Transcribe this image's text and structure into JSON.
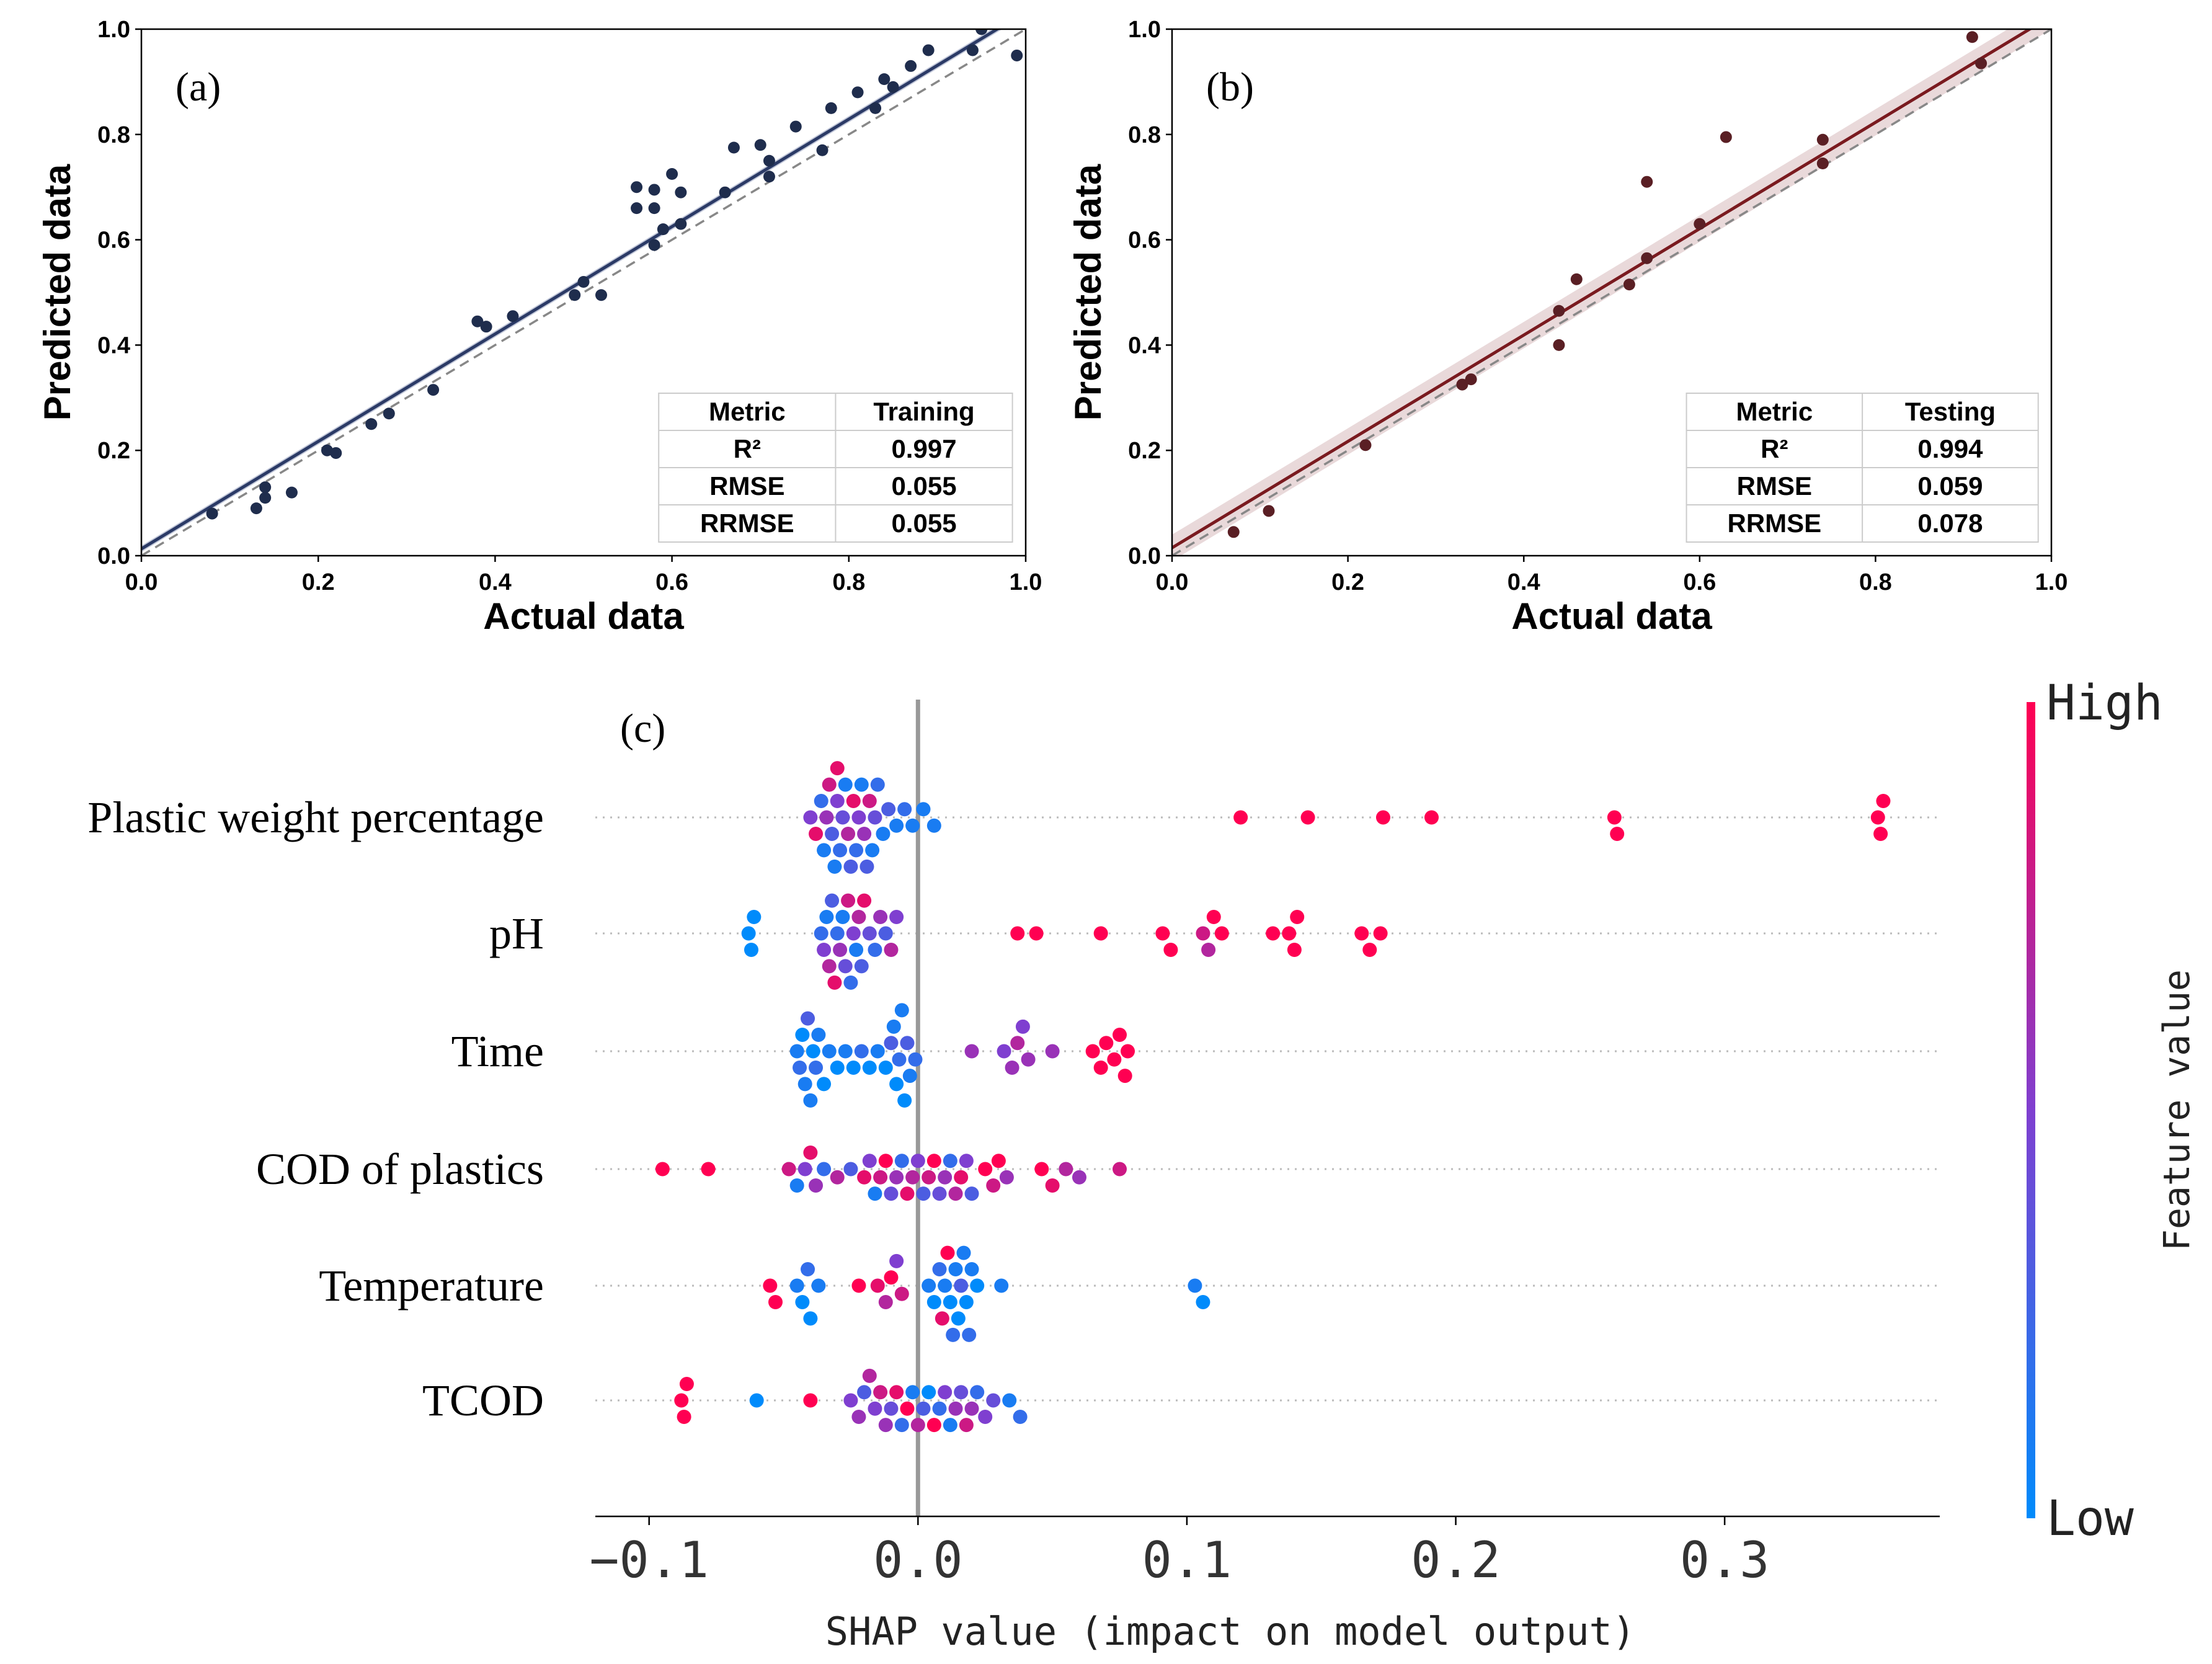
{
  "chart_data": [
    {
      "type": "scatter",
      "panel_label": "(a)",
      "xlabel": "Actual data",
      "ylabel": "Predicted data",
      "xlim": [
        0,
        1
      ],
      "ylim": [
        0,
        1
      ],
      "xticks": [
        "0.0",
        "0.2",
        "0.4",
        "0.6",
        "0.8",
        "1.0"
      ],
      "yticks": [
        "0.0",
        "0.2",
        "0.4",
        "0.6",
        "0.8",
        "1.0"
      ],
      "point_color": "#1f2d4d",
      "line_color": "#2b3a66",
      "band_color": "#8d97b8",
      "fit": {
        "intercept": 0.013,
        "slope": 1.02,
        "band": 0.006
      },
      "reference_line": {
        "style": "dashed",
        "color": "#888888"
      },
      "points": [
        [
          0.08,
          0.08
        ],
        [
          0.13,
          0.09
        ],
        [
          0.14,
          0.11
        ],
        [
          0.14,
          0.13
        ],
        [
          0.17,
          0.12
        ],
        [
          0.21,
          0.2
        ],
        [
          0.22,
          0.195
        ],
        [
          0.26,
          0.25
        ],
        [
          0.28,
          0.27
        ],
        [
          0.33,
          0.315
        ],
        [
          0.38,
          0.445
        ],
        [
          0.39,
          0.435
        ],
        [
          0.42,
          0.455
        ],
        [
          0.49,
          0.495
        ],
        [
          0.5,
          0.52
        ],
        [
          0.52,
          0.495
        ],
        [
          0.56,
          0.7
        ],
        [
          0.56,
          0.66
        ],
        [
          0.58,
          0.695
        ],
        [
          0.58,
          0.66
        ],
        [
          0.58,
          0.59
        ],
        [
          0.59,
          0.62
        ],
        [
          0.6,
          0.725
        ],
        [
          0.61,
          0.69
        ],
        [
          0.61,
          0.63
        ],
        [
          0.66,
          0.69
        ],
        [
          0.67,
          0.775
        ],
        [
          0.7,
          0.78
        ],
        [
          0.71,
          0.75
        ],
        [
          0.71,
          0.72
        ],
        [
          0.74,
          0.815
        ],
        [
          0.77,
          0.77
        ],
        [
          0.78,
          0.85
        ],
        [
          0.81,
          0.88
        ],
        [
          0.83,
          0.85
        ],
        [
          0.84,
          0.905
        ],
        [
          0.85,
          0.89
        ],
        [
          0.87,
          0.93
        ],
        [
          0.89,
          0.96
        ],
        [
          0.94,
          0.96
        ],
        [
          0.95,
          1.0
        ],
        [
          0.99,
          0.95
        ]
      ],
      "table": {
        "headers": [
          "Metric",
          "Training"
        ],
        "rows": [
          [
            "R²",
            "0.997"
          ],
          [
            "RMSE",
            "0.055"
          ],
          [
            "RRMSE",
            "0.055"
          ]
        ]
      }
    },
    {
      "type": "scatter",
      "panel_label": "(b)",
      "xlabel": "Actual data",
      "ylabel": "Predicted data",
      "xlim": [
        0,
        1
      ],
      "ylim": [
        0,
        1
      ],
      "xticks": [
        "0.0",
        "0.2",
        "0.4",
        "0.6",
        "0.8",
        "1.0"
      ],
      "yticks": [
        "0.0",
        "0.2",
        "0.4",
        "0.6",
        "0.8",
        "1.0"
      ],
      "point_color": "#5a1f24",
      "line_color": "#7a1a1f",
      "band_color": "#d7b9bb",
      "fit": {
        "intercept": 0.015,
        "slope": 1.01,
        "band": 0.025
      },
      "reference_line": {
        "style": "dashed",
        "color": "#888888"
      },
      "points": [
        [
          0.07,
          0.045
        ],
        [
          0.11,
          0.085
        ],
        [
          0.22,
          0.21
        ],
        [
          0.33,
          0.325
        ],
        [
          0.34,
          0.335
        ],
        [
          0.44,
          0.4
        ],
        [
          0.44,
          0.465
        ],
        [
          0.46,
          0.525
        ],
        [
          0.52,
          0.515
        ],
        [
          0.54,
          0.565
        ],
        [
          0.54,
          0.71
        ],
        [
          0.6,
          0.63
        ],
        [
          0.63,
          0.795
        ],
        [
          0.74,
          0.745
        ],
        [
          0.74,
          0.79
        ],
        [
          0.91,
          0.985
        ],
        [
          0.92,
          0.935
        ]
      ],
      "table": {
        "headers": [
          "Metric",
          "Testing"
        ],
        "rows": [
          [
            "R²",
            "0.994"
          ],
          [
            "RMSE",
            "0.059"
          ],
          [
            "RRMSE",
            "0.078"
          ]
        ]
      }
    },
    {
      "type": "beeswarm",
      "panel_label": "(c)",
      "xlabel": "SHAP value (impact on model output)",
      "xlim": [
        -0.12,
        0.38
      ],
      "xticks": [
        -0.1,
        0.0,
        0.1,
        0.2,
        0.3
      ],
      "xtick_labels": [
        "−0.1",
        "0.0",
        "0.1",
        "0.2",
        "0.3"
      ],
      "colorbar": {
        "title": "Feature value",
        "high_label": "High",
        "low_label": "Low",
        "low_color": "#008bfb",
        "mid_color": "#7f3fd0",
        "high_color": "#ff0052"
      },
      "features": [
        {
          "name": "Plastic weight percentage",
          "values": [
            -0.04,
            -0.038,
            -0.036,
            -0.035,
            -0.034,
            -0.033,
            -0.032,
            -0.031,
            -0.03,
            -0.03,
            -0.029,
            -0.028,
            -0.027,
            -0.026,
            -0.025,
            -0.024,
            -0.023,
            -0.022,
            -0.021,
            -0.02,
            -0.019,
            -0.018,
            -0.017,
            -0.016,
            -0.015,
            -0.013,
            -0.011,
            -0.008,
            -0.005,
            -0.002,
            0.002,
            0.006,
            0.12,
            0.145,
            0.173,
            0.191,
            0.259,
            0.26,
            0.357,
            0.358,
            0.359
          ],
          "colors": [
            0.5,
            0.9,
            0.2,
            0.1,
            0.6,
            0.8,
            0.3,
            0.1,
            0.5,
            0.9,
            0.2,
            0.4,
            0.1,
            0.7,
            0.3,
            0.9,
            0.2,
            0.5,
            0.1,
            0.6,
            0.3,
            0.8,
            0.1,
            0.4,
            0.2,
            0.1,
            0.3,
            0.1,
            0.2,
            0.1,
            0.1,
            0.1,
            1,
            1,
            1,
            1,
            1,
            1,
            1,
            1,
            1
          ]
        },
        {
          "name": "pH",
          "values": [
            -0.063,
            -0.062,
            -0.061,
            -0.036,
            -0.035,
            -0.034,
            -0.033,
            -0.032,
            -0.031,
            -0.03,
            -0.029,
            -0.028,
            -0.027,
            -0.026,
            -0.025,
            -0.024,
            -0.023,
            -0.022,
            -0.021,
            -0.02,
            -0.018,
            -0.016,
            -0.014,
            -0.012,
            -0.01,
            -0.008,
            0.037,
            0.044,
            0.068,
            0.091,
            0.094,
            0.106,
            0.108,
            0.11,
            0.113,
            0.132,
            0.138,
            0.14,
            0.141,
            0.165,
            0.168,
            0.172
          ],
          "colors": [
            0.0,
            0.0,
            0.0,
            0.2,
            0.5,
            0.1,
            0.7,
            0.3,
            0.9,
            0.2,
            0.6,
            0.1,
            0.4,
            0.8,
            0.2,
            0.5,
            0.1,
            0.7,
            0.3,
            0.9,
            0.4,
            0.2,
            0.6,
            0.3,
            0.7,
            0.5,
            1,
            1,
            1,
            1,
            1,
            0.8,
            0.7,
            1,
            1,
            1,
            1,
            1,
            1,
            1,
            1,
            1
          ]
        },
        {
          "name": "Time",
          "values": [
            -0.045,
            -0.044,
            -0.043,
            -0.042,
            -0.041,
            -0.04,
            -0.039,
            -0.038,
            -0.037,
            -0.035,
            -0.033,
            -0.03,
            -0.027,
            -0.024,
            -0.021,
            -0.018,
            -0.015,
            -0.012,
            -0.01,
            -0.009,
            -0.008,
            -0.007,
            -0.006,
            -0.005,
            -0.004,
            -0.003,
            -0.001,
            0.02,
            0.032,
            0.035,
            0.037,
            0.039,
            0.041,
            0.05,
            0.065,
            0.068,
            0.07,
            0.073,
            0.075,
            0.077,
            0.078
          ],
          "colors": [
            0.1,
            0.2,
            0.0,
            0.1,
            0.3,
            0.1,
            0.0,
            0.2,
            0.1,
            0.0,
            0.1,
            0.0,
            0.1,
            0.0,
            0.2,
            0.0,
            0.1,
            0.0,
            0.3,
            0.1,
            0.0,
            0.2,
            0.1,
            0.0,
            0.3,
            0.1,
            0.2,
            0.6,
            0.5,
            0.6,
            0.7,
            0.5,
            0.6,
            0.6,
            1,
            1,
            1,
            1,
            1,
            1,
            1
          ]
        },
        {
          "name": "COD of plastics",
          "values": [
            -0.095,
            -0.078,
            -0.048,
            -0.045,
            -0.042,
            -0.04,
            -0.038,
            -0.035,
            -0.03,
            -0.025,
            -0.02,
            -0.018,
            -0.016,
            -0.014,
            -0.012,
            -0.01,
            -0.008,
            -0.006,
            -0.004,
            -0.002,
            0,
            0.002,
            0.004,
            0.006,
            0.008,
            0.01,
            0.012,
            0.014,
            0.016,
            0.018,
            0.02,
            0.025,
            0.028,
            0.03,
            0.033,
            0.046,
            0.05,
            0.055,
            0.06,
            0.075
          ],
          "colors": [
            1,
            1,
            0.8,
            0.1,
            0.5,
            0.9,
            0.6,
            0.2,
            0.7,
            0.3,
            0.9,
            0.5,
            0.1,
            0.8,
            1,
            0.4,
            0.6,
            0.2,
            0.9,
            0.7,
            0.5,
            0.3,
            0.8,
            1,
            0.4,
            0.6,
            0.2,
            0.7,
            0.9,
            0.5,
            0.3,
            1,
            0.8,
            1,
            0.6,
            1,
            0.9,
            0.7,
            0.6,
            0.8
          ]
        },
        {
          "name": "Temperature",
          "values": [
            -0.055,
            -0.053,
            -0.045,
            -0.043,
            -0.041,
            -0.04,
            -0.037,
            -0.022,
            -0.015,
            -0.012,
            -0.01,
            -0.008,
            -0.006,
            0.004,
            0.006,
            0.008,
            0.009,
            0.01,
            0.011,
            0.012,
            0.013,
            0.014,
            0.015,
            0.016,
            0.017,
            0.018,
            0.019,
            0.02,
            0.022,
            0.031,
            0.103,
            0.106
          ],
          "colors": [
            1,
            1,
            0.1,
            0.0,
            0.2,
            0.0,
            0.1,
            1,
            0.9,
            0.7,
            1,
            0.5,
            0.8,
            0.1,
            0.0,
            0.2,
            0.9,
            0.1,
            1,
            0.0,
            0.2,
            0.1,
            0.0,
            0.3,
            0.1,
            0.0,
            0.2,
            0.1,
            0.0,
            0.1,
            0.1,
            0.0
          ]
        },
        {
          "name": "TCOD",
          "values": [
            -0.088,
            -0.087,
            -0.086,
            -0.06,
            -0.04,
            -0.025,
            -0.022,
            -0.02,
            -0.018,
            -0.016,
            -0.014,
            -0.012,
            -0.01,
            -0.008,
            -0.006,
            -0.004,
            -0.002,
            0,
            0.002,
            0.004,
            0.006,
            0.008,
            0.01,
            0.012,
            0.014,
            0.016,
            0.018,
            0.02,
            0.022,
            0.025,
            0.028,
            0.034,
            0.038
          ],
          "colors": [
            1,
            1,
            1,
            0.0,
            1,
            0.5,
            0.6,
            0.3,
            0.7,
            0.5,
            0.8,
            0.6,
            0.4,
            0.9,
            0.2,
            1,
            0.1,
            0.7,
            0.3,
            0.0,
            1,
            0.2,
            0.5,
            0.1,
            0.6,
            0.4,
            0.8,
            0.6,
            0.2,
            0.5,
            0.4,
            0.1,
            0.2
          ]
        }
      ]
    }
  ]
}
